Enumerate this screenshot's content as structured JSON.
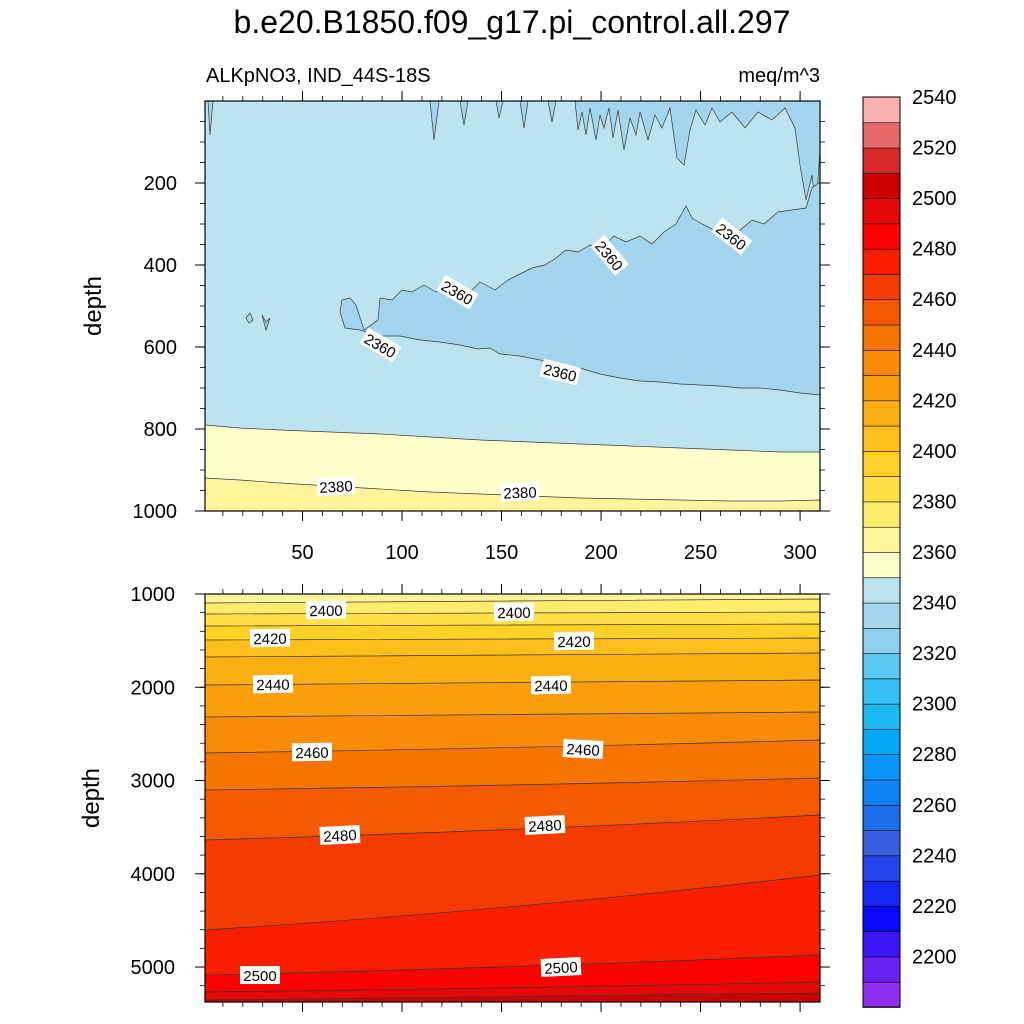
{
  "chart_data": {
    "type": "contour",
    "title": "b.e20.B1850.f09_g17.pi_control.all.297",
    "variable_label": "ALKpNO3, IND_44S-18S",
    "units_label": "meq/m^3",
    "colorbar": {
      "tick_labels": [
        "2200",
        "2220",
        "2240",
        "2260",
        "2280",
        "2300",
        "2320",
        "2340",
        "2360",
        "2380",
        "2400",
        "2420",
        "2440",
        "2460",
        "2480",
        "2500",
        "2520",
        "2540"
      ],
      "levels": [
        2190,
        2195,
        2200,
        2205,
        2210,
        2215,
        2220,
        2225,
        2230,
        2235,
        2240,
        2245,
        2250,
        2255,
        2260,
        2265,
        2270,
        2275,
        2280,
        2285,
        2290,
        2295,
        2300,
        2305,
        2310,
        2315,
        2320,
        2325,
        2330,
        2335,
        2340,
        2345,
        2350,
        2355,
        2360,
        2365,
        2370,
        2375,
        2380,
        2385,
        2390,
        2395,
        2400,
        2405,
        2410,
        2415,
        2420,
        2425,
        2430,
        2435,
        2440,
        2445,
        2450,
        2455,
        2460,
        2465,
        2470,
        2475,
        2480,
        2485,
        2490,
        2495,
        2500,
        2505,
        2510,
        2515,
        2520,
        2525,
        2530,
        2535,
        2540,
        2545,
        2550,
        2555
      ],
      "colors": [
        "#8d2ff0",
        "#6a22f4",
        "#3b16f8",
        "#0a08fd",
        "#1626f2",
        "#2545ea",
        "#3a5ee0",
        "#1a6fe8",
        "#1182f5",
        "#0a95fb",
        "#02a8f4",
        "#1cb8f0",
        "#34c0f4",
        "#5cc8f2",
        "#8ecff0",
        "#a4d5ee",
        "#bce3f2",
        "#ffffcc",
        "#fff49c",
        "#ffeb6c",
        "#ffe046",
        "#ffd025",
        "#fcbf1c",
        "#fbaf12",
        "#fa9e0a",
        "#f88c06",
        "#f67402",
        "#f55a02",
        "#f53a02",
        "#fb1f00",
        "#ff0000",
        "#e60808",
        "#cc0000",
        "#d72b2b",
        "#e66969",
        "#fdb1b1"
      ]
    },
    "top_panel": {
      "ylabel": "depth",
      "y_range": [
        0,
        1000
      ],
      "y_ticks": [
        "200",
        "400",
        "600",
        "800",
        "1000"
      ],
      "x_range": [
        1,
        310
      ],
      "x_ticks": [
        "50",
        "100",
        "150",
        "200",
        "250",
        "300"
      ],
      "contour_labels": [
        "2360",
        "2360",
        "2360",
        "2360",
        "2360",
        "2380",
        "2380"
      ]
    },
    "bottom_panel": {
      "ylabel": "depth",
      "y_range": [
        1000,
        5375
      ],
      "y_ticks": [
        "1000",
        "2000",
        "3000",
        "4000",
        "5000"
      ],
      "x_range": [
        1,
        310
      ],
      "contour_labels": [
        "2400",
        "2400",
        "2420",
        "2420",
        "2440",
        "2440",
        "2460",
        "2460",
        "2480",
        "2480",
        "2500",
        "2500"
      ]
    }
  }
}
